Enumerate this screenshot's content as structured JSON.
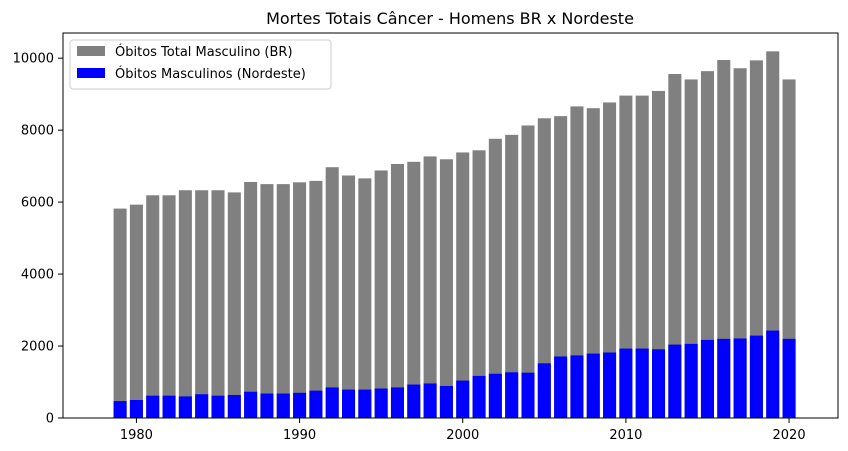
{
  "chart_data": {
    "type": "bar",
    "title": "Mortes Totais Câncer - Homens BR x Nordeste",
    "xlabel": "",
    "ylabel": "",
    "x": [
      1979,
      1980,
      1981,
      1982,
      1983,
      1984,
      1985,
      1986,
      1987,
      1988,
      1989,
      1990,
      1991,
      1992,
      1993,
      1994,
      1995,
      1996,
      1997,
      1998,
      1999,
      2000,
      2001,
      2002,
      2003,
      2004,
      2005,
      2006,
      2007,
      2008,
      2009,
      2010,
      2011,
      2012,
      2013,
      2014,
      2015,
      2016,
      2017,
      2018,
      2019,
      2020
    ],
    "xlim": [
      1975.5,
      2023
    ],
    "ylim": [
      0,
      10700
    ],
    "xticks": [
      1980,
      1990,
      2000,
      2010,
      2020
    ],
    "yticks": [
      0,
      2000,
      4000,
      6000,
      8000,
      10000
    ],
    "legend_position": "upper-left",
    "overlaid": true,
    "grid": false,
    "series": [
      {
        "name": "Óbitos Total Masculino (BR)",
        "color": "#808080",
        "values": [
          5820,
          5930,
          6190,
          6190,
          6330,
          6330,
          6330,
          6270,
          6560,
          6500,
          6500,
          6550,
          6590,
          6970,
          6740,
          6660,
          6880,
          7060,
          7120,
          7270,
          7190,
          7380,
          7440,
          7760,
          7870,
          8130,
          8330,
          8390,
          8660,
          8610,
          8770,
          8960,
          8960,
          9090,
          9560,
          9410,
          9640,
          9950,
          9720,
          9940,
          10190,
          9410
        ]
      },
      {
        "name": "Óbitos Masculinos (Nordeste)",
        "color": "#0000ff",
        "values": [
          470,
          500,
          620,
          620,
          600,
          660,
          620,
          640,
          730,
          680,
          680,
          700,
          760,
          850,
          790,
          790,
          820,
          850,
          930,
          960,
          890,
          1040,
          1170,
          1230,
          1270,
          1260,
          1520,
          1710,
          1740,
          1790,
          1820,
          1930,
          1930,
          1910,
          2040,
          2060,
          2170,
          2200,
          2210,
          2290,
          2430,
          2200
        ]
      }
    ]
  }
}
